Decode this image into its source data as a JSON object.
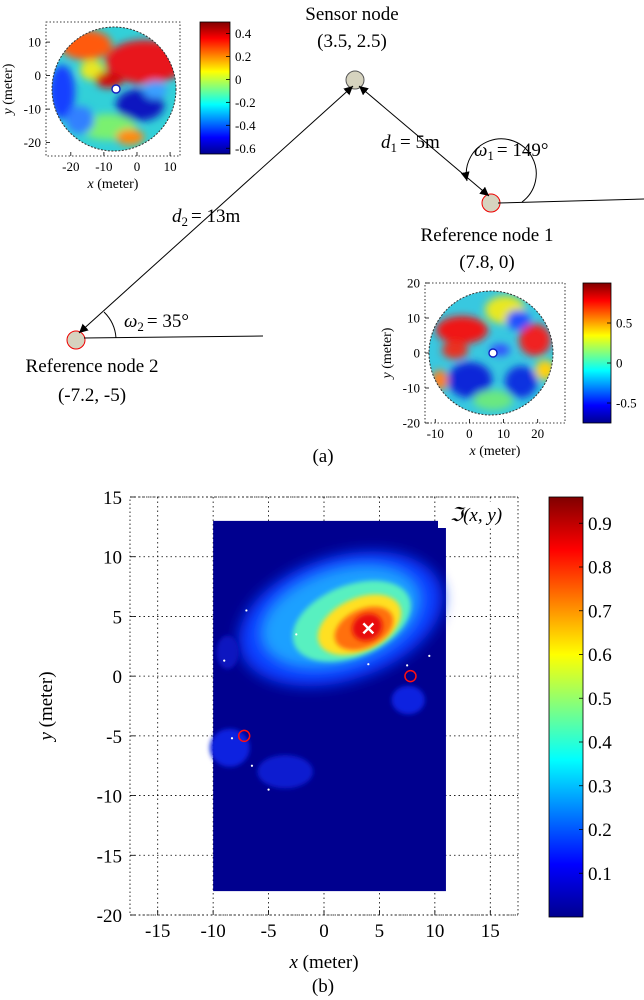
{
  "colors": {
    "jet": [
      "#00008f",
      "#0000ff",
      "#0080ff",
      "#00ffff",
      "#80ff80",
      "#ffff00",
      "#ff8000",
      "#ff0000",
      "#800000"
    ]
  },
  "chart_data": [
    {
      "type": "diagram",
      "panel_label": "(a)",
      "nodes": [
        {
          "id": "sensor",
          "title": "Sensor node",
          "coords": "(3.5, 2.5)"
        },
        {
          "id": "ref1",
          "title": "Reference node 1",
          "coords": "(7.8, 0)"
        },
        {
          "id": "ref2",
          "title": "Reference node 2",
          "coords": "(-7.2, -5)"
        }
      ],
      "edges": [
        {
          "from": "ref1",
          "to": "sensor",
          "d_main": "d",
          "d_sub": "1",
          "d_value": "= 5m",
          "angle_main": "ω",
          "angle_sub": "1",
          "angle_value": "= 149°"
        },
        {
          "from": "ref2",
          "to": "sensor",
          "d_main": "d",
          "d_sub": "2",
          "d_value": "= 13m",
          "angle_main": "ω",
          "angle_sub": "2",
          "angle_value": "= 35°"
        }
      ]
    },
    {
      "type": "heatmap",
      "shape": "disc",
      "xlabel_var": "x",
      "xlabel_unit": "(meter)",
      "ylabel_var": "y",
      "ylabel_unit": "(meter)",
      "xticks": [
        -20,
        -10,
        0,
        10
      ],
      "yticks": [
        10,
        0,
        -10,
        -20
      ],
      "xlim": [
        -27.5,
        13
      ],
      "ylim": [
        -24,
        16
      ],
      "center": [
        -7.2,
        -5
      ],
      "radius": 20,
      "colorbar": {
        "min": -0.65,
        "max": 0.5,
        "ticks": [
          "0.4",
          "0.2",
          "0",
          "-0.2",
          "-0.4",
          "-0.6"
        ]
      }
    },
    {
      "type": "heatmap",
      "shape": "disc",
      "xlabel_var": "x",
      "xlabel_unit": "(meter)",
      "ylabel_var": "y",
      "ylabel_unit": "(meter)",
      "xticks": [
        -10,
        0,
        10,
        20
      ],
      "yticks": [
        20,
        10,
        0,
        -10,
        -20
      ],
      "xlim": [
        -13,
        28
      ],
      "ylim": [
        -20,
        20
      ],
      "center": [
        7.8,
        0
      ],
      "radius": 19,
      "colorbar": {
        "min": -0.75,
        "max": 1.0,
        "ticks": [
          "0.5",
          "0",
          "-0.5"
        ]
      }
    },
    {
      "type": "heatmap",
      "panel_label": "(b)",
      "title": "ℑ(x, y)",
      "xlabel_var": "x",
      "xlabel_unit": "(meter)",
      "ylabel_var": "y",
      "ylabel_unit": "(meter)",
      "xlim": [
        -17.5,
        17.5
      ],
      "ylim": [
        -20,
        15
      ],
      "xticks": [
        -15,
        -10,
        -5,
        0,
        5,
        10,
        15
      ],
      "yticks": [
        15,
        10,
        5,
        0,
        -5,
        -10,
        -15,
        -20
      ],
      "grid": true,
      "data_extent": {
        "x": [
          -10,
          11
        ],
        "y": [
          -18,
          13
        ]
      },
      "estimate": [
        4,
        4
      ],
      "reference_nodes": [
        [
          7.8,
          0
        ],
        [
          -7.2,
          -5
        ]
      ],
      "colorbar": {
        "min": 0,
        "max": 0.96,
        "ticks": [
          "0.9",
          "0.8",
          "0.7",
          "0.6",
          "0.5",
          "0.4",
          "0.3",
          "0.2",
          "0.1"
        ]
      }
    }
  ]
}
